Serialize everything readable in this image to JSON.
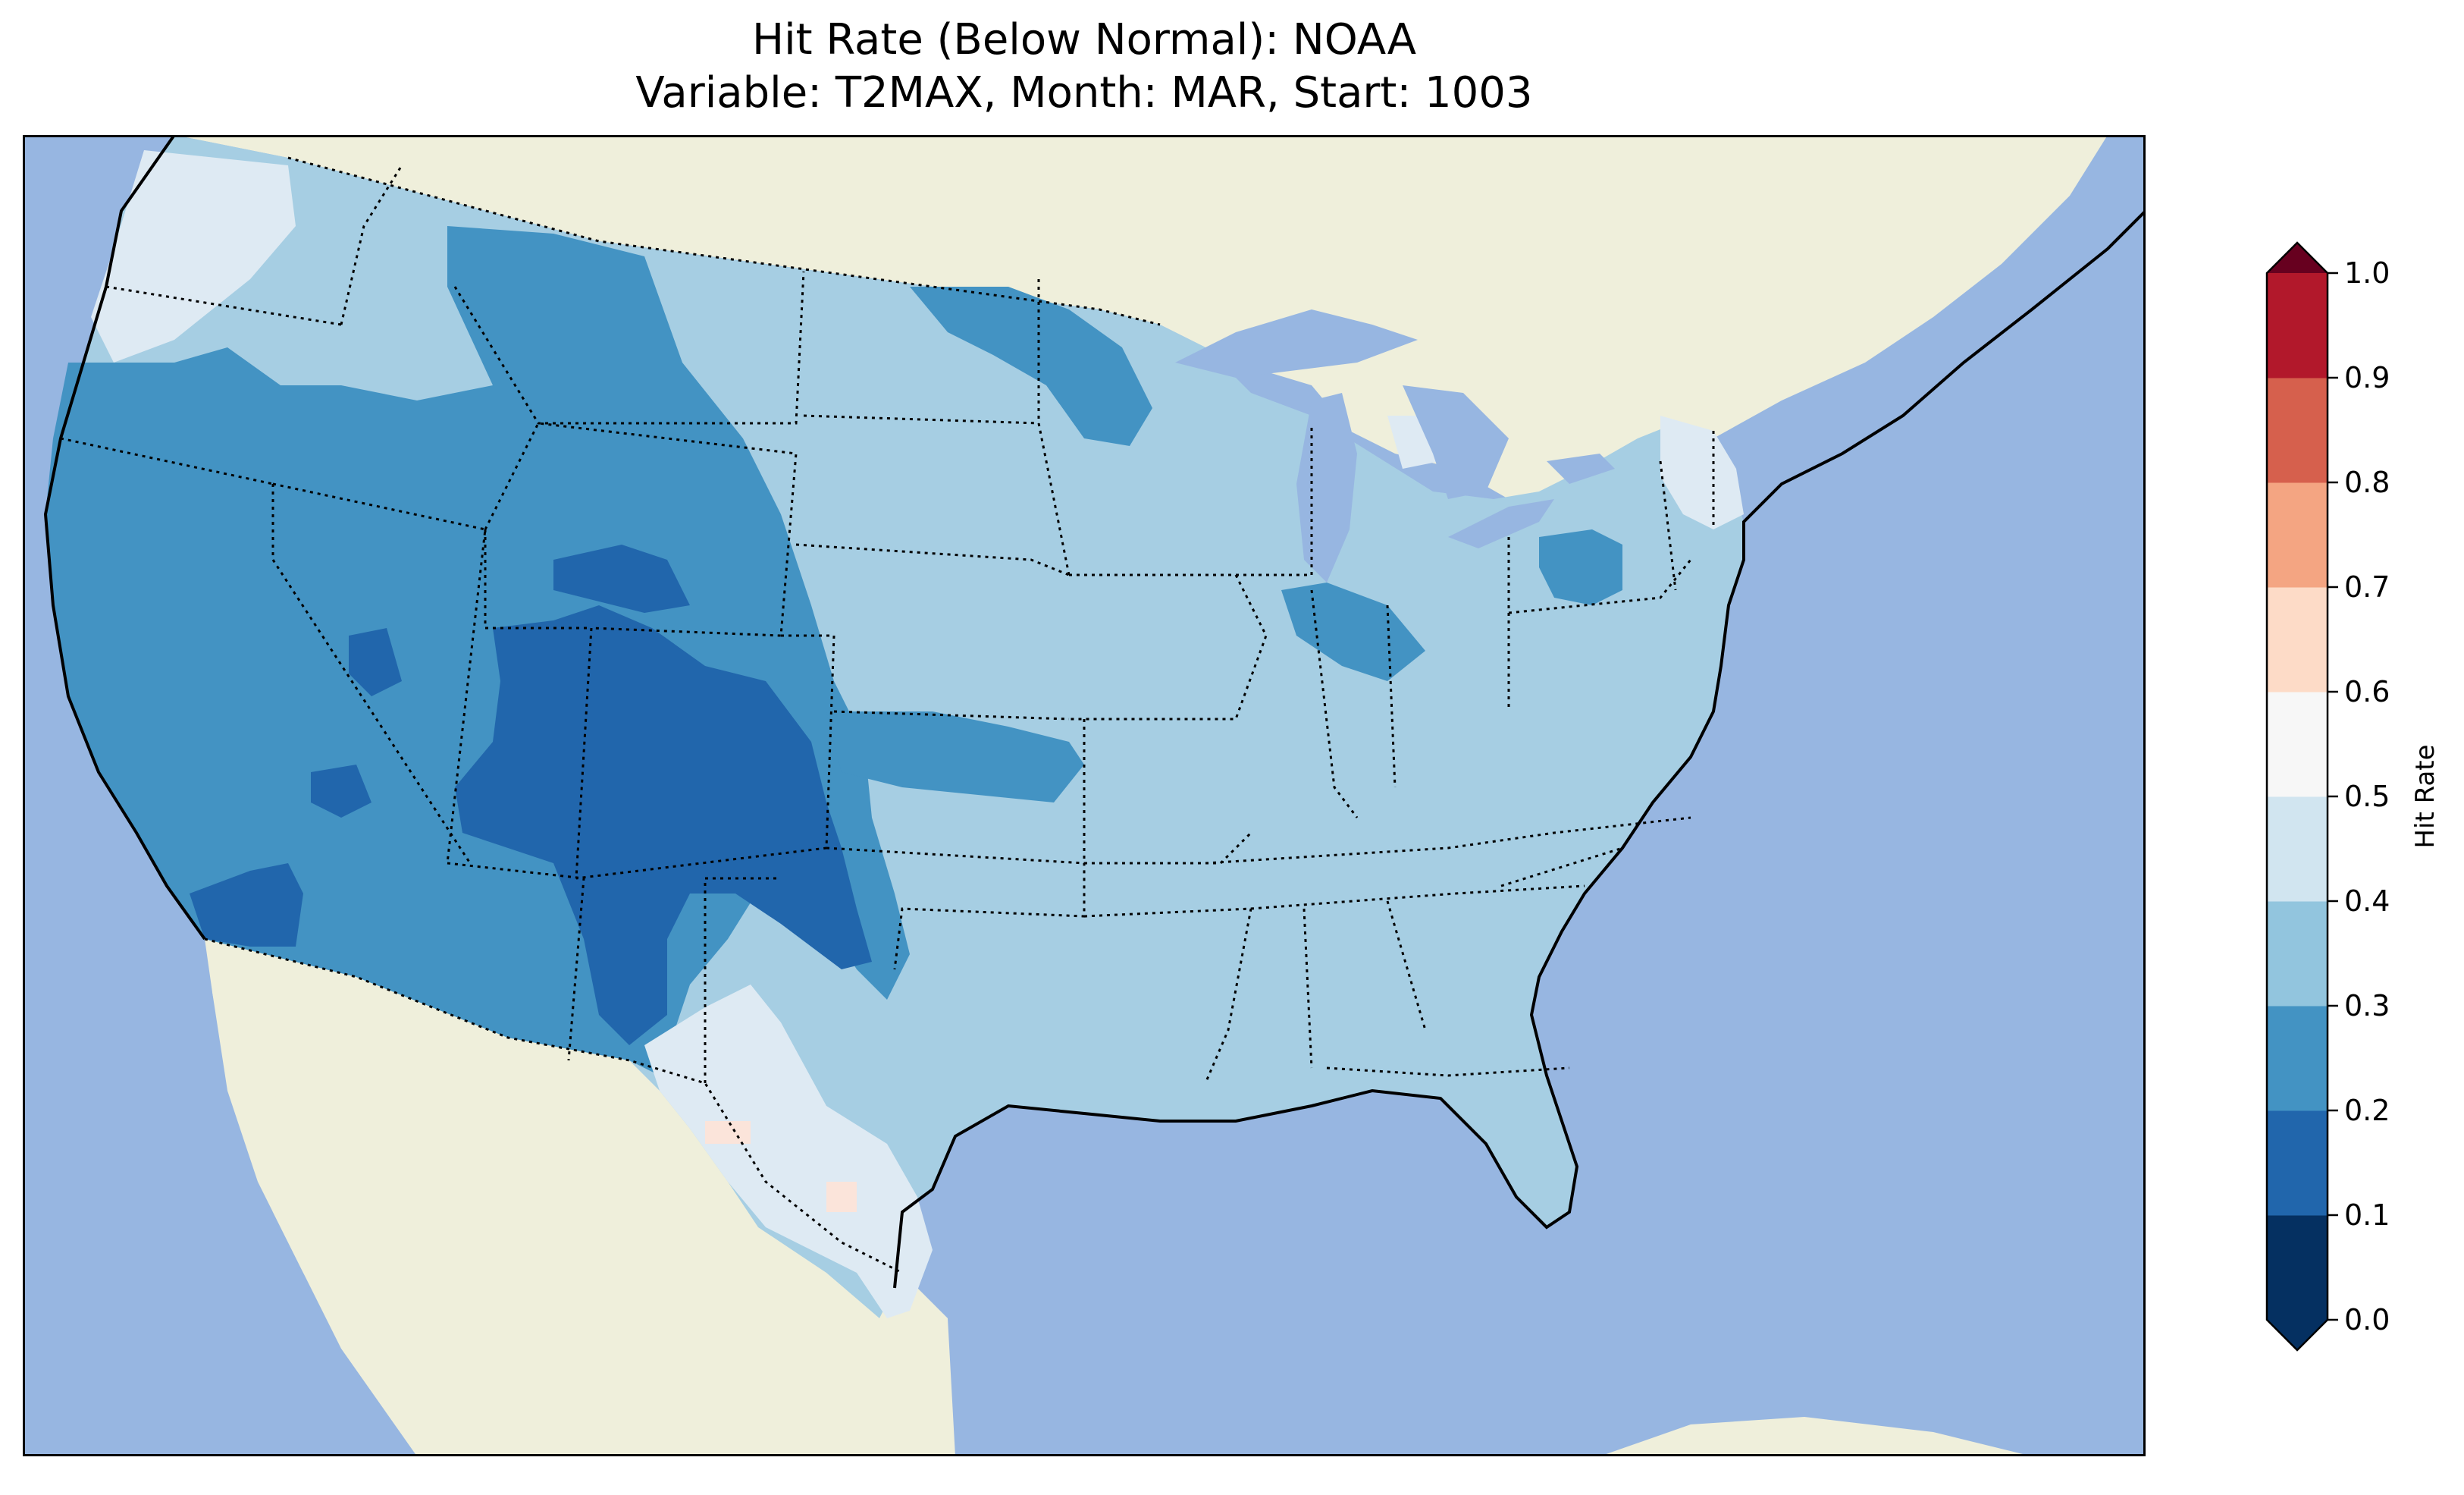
{
  "title": {
    "line1": "Hit Rate (Below Normal): NOAA",
    "line2": "Variable: T2MAX, Month: MAR, Start: 1003"
  },
  "colorbar": {
    "label": "Hit Rate",
    "ticks": [
      "0.0",
      "0.1",
      "0.2",
      "0.3",
      "0.4",
      "0.5",
      "0.6",
      "0.7",
      "0.8",
      "0.9",
      "1.0"
    ],
    "colors": [
      "#053061",
      "#2166ac",
      "#4393c3",
      "#92c5de",
      "#d1e5f0",
      "#f7f7f7",
      "#fddbc7",
      "#f4a582",
      "#d6604d",
      "#b2182b",
      "#67001f"
    ],
    "extend": "both"
  },
  "map": {
    "ocean_color": "#97b6e1",
    "land_color": "#efefdb",
    "field_colors": {
      "0.1-0.2": "#2166ac",
      "0.2-0.3": "#4393c3",
      "0.3-0.4": "#a6cee3",
      "0.4-0.5": "#deeaf3",
      "0.5-0.6": "#fbe4da"
    }
  }
}
